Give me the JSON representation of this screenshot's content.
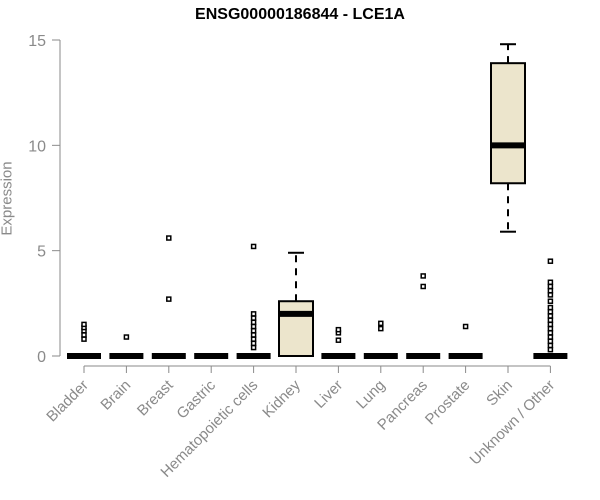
{
  "chart_data": {
    "type": "box",
    "title": "ENSG00000186844 - LCE1A",
    "xlabel": "",
    "ylabel": "Expression",
    "ylim": [
      0,
      15
    ],
    "yticks": [
      0,
      5,
      10,
      15
    ],
    "grid": false,
    "categories": [
      "Bladder",
      "Brain",
      "Breast",
      "Gastric",
      "Hematopoietic cells",
      "Kidney",
      "Liver",
      "Lung",
      "Pancreas",
      "Prostate",
      "Skin",
      "Unknown / Other"
    ],
    "boxes": [
      {
        "name": "Bladder",
        "min": 0,
        "q1": 0,
        "median": 0,
        "q3": 0,
        "max": 0,
        "outliers": [
          0.8,
          1.0,
          1.2,
          1.35,
          1.5
        ]
      },
      {
        "name": "Brain",
        "min": 0,
        "q1": 0,
        "median": 0,
        "q3": 0,
        "max": 0,
        "outliers": [
          0.9
        ]
      },
      {
        "name": "Breast",
        "min": 0,
        "q1": 0,
        "median": 0,
        "q3": 0,
        "max": 0,
        "outliers": [
          2.7,
          5.6
        ]
      },
      {
        "name": "Gastric",
        "min": 0,
        "q1": 0,
        "median": 0,
        "q3": 0,
        "max": 0,
        "outliers": []
      },
      {
        "name": "Hematopoietic cells",
        "min": 0,
        "q1": 0,
        "median": 0,
        "q3": 0,
        "max": 0,
        "outliers": [
          0.4,
          0.6,
          0.8,
          1.0,
          1.2,
          1.4,
          1.6,
          1.8,
          2.0,
          5.2
        ]
      },
      {
        "name": "Kidney",
        "min": 0,
        "q1": 0,
        "median": 2.0,
        "q3": 2.6,
        "max": 4.9,
        "outliers": []
      },
      {
        "name": "Liver",
        "min": 0,
        "q1": 0,
        "median": 0,
        "q3": 0,
        "max": 0,
        "outliers": [
          0.75,
          1.1,
          1.25
        ]
      },
      {
        "name": "Lung",
        "min": 0,
        "q1": 0,
        "median": 0,
        "q3": 0,
        "max": 0,
        "outliers": [
          1.3,
          1.55
        ]
      },
      {
        "name": "Pancreas",
        "min": 0,
        "q1": 0,
        "median": 0,
        "q3": 0,
        "max": 0,
        "outliers": [
          3.3,
          3.8
        ]
      },
      {
        "name": "Prostate",
        "min": 0,
        "q1": 0,
        "median": 0,
        "q3": 0,
        "max": 0,
        "outliers": [
          1.4
        ]
      },
      {
        "name": "Skin",
        "min": 5.9,
        "q1": 8.2,
        "median": 10.0,
        "q3": 13.9,
        "max": 14.8,
        "outliers": []
      },
      {
        "name": "Unknown / Other",
        "min": 0,
        "q1": 0,
        "median": 0,
        "q3": 0,
        "max": 0,
        "outliers": [
          0.3,
          0.5,
          0.7,
          0.9,
          1.1,
          1.3,
          1.5,
          1.7,
          1.9,
          2.1,
          2.3,
          2.6,
          2.9,
          3.1,
          3.3,
          3.5,
          4.5
        ]
      }
    ],
    "box_fill": "#ece5cc",
    "axis_color": "#8a8a8a"
  }
}
